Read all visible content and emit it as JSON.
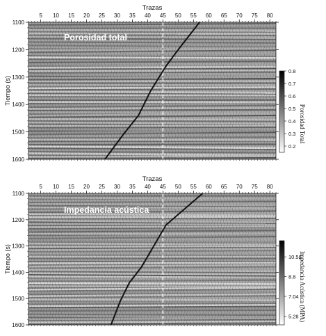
{
  "chart_data": [
    {
      "type": "heatmap",
      "title": "Porosidad total",
      "xlabel": "Trazas",
      "ylabel": "Tiempo (s)",
      "x_ticks": [
        5,
        10,
        15,
        20,
        25,
        30,
        35,
        40,
        45,
        50,
        55,
        60,
        65,
        70,
        75,
        80
      ],
      "y_ticks": [
        1100,
        1200,
        1300,
        1400,
        1500,
        1600
      ],
      "xlim": [
        1,
        82
      ],
      "ylim": [
        1100,
        1600
      ],
      "y_inverted": true,
      "colorbar": {
        "label": "Porosidad Total",
        "ticks": [
          0.8,
          0.7,
          0.6,
          0.5,
          0.4,
          0.3,
          0.2
        ],
        "range": [
          0.15,
          0.8
        ],
        "colors": [
          "#ffffff",
          "#000000"
        ]
      },
      "well_trace": {
        "x": 45,
        "style": "dashed",
        "color": "#ffffff"
      },
      "well_path": {
        "x": [
          57,
          50,
          46,
          41,
          37,
          32,
          26
        ],
        "y": [
          1100,
          1200,
          1260,
          1350,
          1440,
          1510,
          1600
        ],
        "color": "#111111"
      }
    },
    {
      "type": "heatmap",
      "title": "Impedancia acústica",
      "xlabel": "Trazas",
      "ylabel": "Tiempo (s)",
      "x_ticks": [
        5,
        10,
        15,
        20,
        25,
        30,
        35,
        40,
        45,
        50,
        55,
        60,
        65,
        70,
        75,
        80
      ],
      "y_ticks": [
        1100,
        1200,
        1300,
        1400,
        1500,
        1600
      ],
      "xlim": [
        1,
        82
      ],
      "ylim": [
        1100,
        1600
      ],
      "y_inverted": true,
      "colorbar": {
        "label": "Impedancia Acústica (MPA)",
        "ticks": [
          10.56,
          8.8,
          7.04,
          5.28
        ],
        "range": [
          4.5,
          12
        ],
        "colors": [
          "#ffffff",
          "#000000"
        ]
      },
      "well_trace": {
        "x": 45,
        "style": "dashed",
        "color": "#ffffff"
      },
      "well_path": {
        "x": [
          58,
          52,
          46,
          42,
          38,
          34,
          31,
          28
        ],
        "y": [
          1100,
          1160,
          1220,
          1300,
          1380,
          1440,
          1510,
          1600
        ],
        "color": "#111111"
      }
    }
  ]
}
